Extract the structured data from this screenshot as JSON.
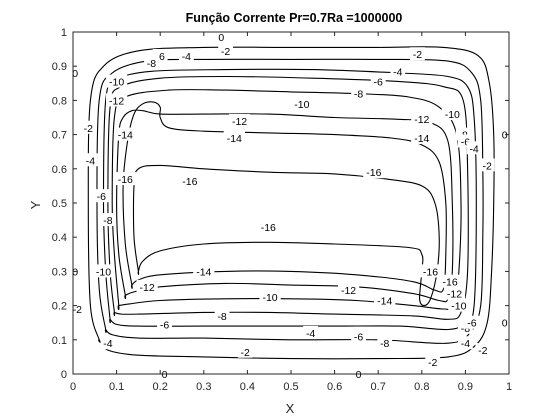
{
  "chart_data": {
    "type": "contour",
    "title": "Função Corrente Pr=0.7Ra =1000000",
    "xlabel": "X",
    "ylabel": "Y",
    "xlim": [
      0,
      1
    ],
    "ylim": [
      0,
      1
    ],
    "xticks": [
      "0",
      "0.1",
      "0.2",
      "0.3",
      "0.4",
      "0.5",
      "0.6",
      "0.7",
      "0.8",
      "0.9",
      "1"
    ],
    "yticks": [
      "0",
      "0.1",
      "0.2",
      "0.3",
      "0.4",
      "0.5",
      "0.6",
      "0.7",
      "0.8",
      "0.9",
      "1"
    ],
    "grid": false,
    "line_color": "#000000",
    "levels": [
      0,
      -2,
      -4,
      -6,
      -8,
      -10,
      -12,
      -14,
      -16
    ],
    "contours": [
      {
        "level": -2,
        "points": [
          [
            0.06,
            0.1
          ],
          [
            0.04,
            0.2
          ],
          [
            0.035,
            0.5
          ],
          [
            0.04,
            0.8
          ],
          [
            0.07,
            0.9
          ],
          [
            0.15,
            0.945
          ],
          [
            0.3,
            0.955
          ],
          [
            0.5,
            0.955
          ],
          [
            0.7,
            0.955
          ],
          [
            0.85,
            0.955
          ],
          [
            0.93,
            0.93
          ],
          [
            0.955,
            0.85
          ],
          [
            0.965,
            0.7
          ],
          [
            0.965,
            0.5
          ],
          [
            0.96,
            0.3
          ],
          [
            0.95,
            0.15
          ],
          [
            0.92,
            0.08
          ],
          [
            0.86,
            0.05
          ],
          [
            0.7,
            0.045
          ],
          [
            0.5,
            0.045
          ],
          [
            0.3,
            0.05
          ],
          [
            0.15,
            0.055
          ],
          [
            0.08,
            0.07
          ],
          [
            0.06,
            0.1
          ]
        ]
      },
      {
        "level": -4,
        "points": [
          [
            0.075,
            0.13
          ],
          [
            0.06,
            0.25
          ],
          [
            0.055,
            0.5
          ],
          [
            0.06,
            0.8
          ],
          [
            0.09,
            0.88
          ],
          [
            0.17,
            0.915
          ],
          [
            0.3,
            0.92
          ],
          [
            0.5,
            0.92
          ],
          [
            0.7,
            0.92
          ],
          [
            0.86,
            0.915
          ],
          [
            0.915,
            0.88
          ],
          [
            0.935,
            0.8
          ],
          [
            0.94,
            0.6
          ],
          [
            0.94,
            0.4
          ],
          [
            0.935,
            0.2
          ],
          [
            0.91,
            0.12
          ],
          [
            0.86,
            0.09
          ],
          [
            0.7,
            0.1
          ],
          [
            0.5,
            0.1
          ],
          [
            0.3,
            0.105
          ],
          [
            0.15,
            0.105
          ],
          [
            0.09,
            0.115
          ],
          [
            0.075,
            0.13
          ]
        ]
      },
      {
        "level": -6,
        "points": [
          [
            0.085,
            0.16
          ],
          [
            0.075,
            0.3
          ],
          [
            0.07,
            0.5
          ],
          [
            0.075,
            0.8
          ],
          [
            0.1,
            0.86
          ],
          [
            0.18,
            0.885
          ],
          [
            0.35,
            0.89
          ],
          [
            0.55,
            0.89
          ],
          [
            0.75,
            0.88
          ],
          [
            0.86,
            0.87
          ],
          [
            0.905,
            0.84
          ],
          [
            0.92,
            0.75
          ],
          [
            0.925,
            0.5
          ],
          [
            0.92,
            0.2
          ],
          [
            0.9,
            0.15
          ],
          [
            0.86,
            0.13
          ],
          [
            0.75,
            0.14
          ],
          [
            0.6,
            0.14
          ],
          [
            0.45,
            0.14
          ],
          [
            0.3,
            0.14
          ],
          [
            0.15,
            0.14
          ],
          [
            0.1,
            0.145
          ],
          [
            0.085,
            0.16
          ]
        ]
      },
      {
        "level": -8,
        "points": [
          [
            0.095,
            0.18
          ],
          [
            0.085,
            0.3
          ],
          [
            0.08,
            0.5
          ],
          [
            0.085,
            0.78
          ],
          [
            0.11,
            0.84
          ],
          [
            0.2,
            0.865
          ],
          [
            0.35,
            0.87
          ],
          [
            0.55,
            0.865
          ],
          [
            0.75,
            0.855
          ],
          [
            0.85,
            0.84
          ],
          [
            0.895,
            0.8
          ],
          [
            0.905,
            0.6
          ],
          [
            0.905,
            0.3
          ],
          [
            0.89,
            0.18
          ],
          [
            0.86,
            0.16
          ],
          [
            0.78,
            0.17
          ],
          [
            0.6,
            0.175
          ],
          [
            0.45,
            0.18
          ],
          [
            0.3,
            0.18
          ],
          [
            0.15,
            0.175
          ],
          [
            0.11,
            0.175
          ],
          [
            0.095,
            0.18
          ]
        ]
      },
      {
        "level": -10,
        "points": [
          [
            0.105,
            0.2
          ],
          [
            0.095,
            0.35
          ],
          [
            0.09,
            0.5
          ],
          [
            0.095,
            0.75
          ],
          [
            0.12,
            0.81
          ],
          [
            0.22,
            0.83
          ],
          [
            0.35,
            0.83
          ],
          [
            0.5,
            0.825
          ],
          [
            0.65,
            0.82
          ],
          [
            0.77,
            0.81
          ],
          [
            0.84,
            0.78
          ],
          [
            0.88,
            0.7
          ],
          [
            0.89,
            0.5
          ],
          [
            0.885,
            0.3
          ],
          [
            0.875,
            0.2
          ],
          [
            0.85,
            0.19
          ],
          [
            0.78,
            0.2
          ],
          [
            0.65,
            0.215
          ],
          [
            0.5,
            0.22
          ],
          [
            0.35,
            0.22
          ],
          [
            0.2,
            0.215
          ],
          [
            0.13,
            0.205
          ],
          [
            0.105,
            0.2
          ]
        ]
      },
      {
        "level": -12,
        "points": [
          [
            0.12,
            0.23
          ],
          [
            0.105,
            0.35
          ],
          [
            0.1,
            0.5
          ],
          [
            0.105,
            0.7
          ],
          [
            0.115,
            0.75
          ],
          [
            0.135,
            0.77
          ],
          [
            0.16,
            0.77
          ],
          [
            0.2,
            0.76
          ],
          [
            0.3,
            0.76
          ],
          [
            0.45,
            0.76
          ],
          [
            0.6,
            0.75
          ],
          [
            0.74,
            0.745
          ],
          [
            0.82,
            0.735
          ],
          [
            0.86,
            0.68
          ],
          [
            0.87,
            0.5
          ],
          [
            0.87,
            0.3
          ],
          [
            0.86,
            0.22
          ],
          [
            0.84,
            0.215
          ],
          [
            0.78,
            0.235
          ],
          [
            0.65,
            0.255
          ],
          [
            0.5,
            0.26
          ],
          [
            0.35,
            0.265
          ],
          [
            0.2,
            0.255
          ],
          [
            0.14,
            0.24
          ],
          [
            0.12,
            0.23
          ]
        ]
      },
      {
        "level": -14,
        "points": [
          [
            0.135,
            0.26
          ],
          [
            0.12,
            0.38
          ],
          [
            0.115,
            0.55
          ],
          [
            0.125,
            0.68
          ],
          [
            0.14,
            0.76
          ],
          [
            0.16,
            0.79
          ],
          [
            0.185,
            0.795
          ],
          [
            0.2,
            0.78
          ],
          [
            0.2,
            0.75
          ],
          [
            0.22,
            0.72
          ],
          [
            0.3,
            0.71
          ],
          [
            0.45,
            0.705
          ],
          [
            0.6,
            0.7
          ],
          [
            0.73,
            0.69
          ],
          [
            0.8,
            0.67
          ],
          [
            0.84,
            0.62
          ],
          [
            0.855,
            0.5
          ],
          [
            0.855,
            0.35
          ],
          [
            0.85,
            0.25
          ],
          [
            0.83,
            0.245
          ],
          [
            0.78,
            0.27
          ],
          [
            0.65,
            0.29
          ],
          [
            0.5,
            0.3
          ],
          [
            0.35,
            0.3
          ],
          [
            0.2,
            0.29
          ],
          [
            0.15,
            0.275
          ],
          [
            0.135,
            0.26
          ]
        ]
      },
      {
        "level": -16,
        "points": [
          [
            0.15,
            0.3
          ],
          [
            0.14,
            0.4
          ],
          [
            0.14,
            0.55
          ],
          [
            0.15,
            0.6
          ],
          [
            0.2,
            0.61
          ],
          [
            0.3,
            0.6
          ],
          [
            0.45,
            0.59
          ],
          [
            0.6,
            0.585
          ],
          [
            0.72,
            0.57
          ],
          [
            0.8,
            0.55
          ],
          [
            0.83,
            0.5
          ],
          [
            0.84,
            0.4
          ],
          [
            0.835,
            0.3
          ],
          [
            0.82,
            0.22
          ],
          [
            0.805,
            0.2
          ],
          [
            0.795,
            0.22
          ],
          [
            0.8,
            0.3
          ],
          [
            0.8,
            0.35
          ],
          [
            0.77,
            0.37
          ],
          [
            0.6,
            0.38
          ],
          [
            0.45,
            0.385
          ],
          [
            0.3,
            0.38
          ],
          [
            0.2,
            0.36
          ],
          [
            0.16,
            0.33
          ],
          [
            0.15,
            0.3
          ]
        ]
      }
    ],
    "labels": [
      {
        "text": "0",
        "x": 0.34,
        "y": 0.985
      },
      {
        "text": "-2",
        "x": 0.35,
        "y": 0.945
      },
      {
        "text": "-2",
        "x": 0.79,
        "y": 0.935
      },
      {
        "text": "-6",
        "x": 0.2,
        "y": 0.93
      },
      {
        "text": "-8",
        "x": 0.18,
        "y": 0.91
      },
      {
        "text": "-4",
        "x": 0.26,
        "y": 0.93
      },
      {
        "text": "-4",
        "x": 0.745,
        "y": 0.885
      },
      {
        "text": "0",
        "x": 0.005,
        "y": 0.88
      },
      {
        "text": "-6",
        "x": 0.7,
        "y": 0.855
      },
      {
        "text": "-10",
        "x": 0.1,
        "y": 0.855
      },
      {
        "text": "-8",
        "x": 0.655,
        "y": 0.82
      },
      {
        "text": "-12",
        "x": 0.1,
        "y": 0.8
      },
      {
        "text": "-10",
        "x": 0.525,
        "y": 0.79
      },
      {
        "text": "-2",
        "x": 0.035,
        "y": 0.72
      },
      {
        "text": "-12",
        "x": 0.382,
        "y": 0.74
      },
      {
        "text": "-12",
        "x": 0.8,
        "y": 0.745
      },
      {
        "text": "-10",
        "x": 0.87,
        "y": 0.76
      },
      {
        "text": "-14",
        "x": 0.12,
        "y": 0.7
      },
      {
        "text": "-14",
        "x": 0.37,
        "y": 0.69
      },
      {
        "text": "-14",
        "x": 0.8,
        "y": 0.69
      },
      {
        "text": "-8",
        "x": 0.895,
        "y": 0.7
      },
      {
        "text": "-6",
        "x": 0.9,
        "y": 0.68
      },
      {
        "text": "-4",
        "x": 0.92,
        "y": 0.66
      },
      {
        "text": "0",
        "x": 0.99,
        "y": 0.7
      },
      {
        "text": "-2",
        "x": 0.95,
        "y": 0.61
      },
      {
        "text": "-4",
        "x": 0.04,
        "y": 0.625
      },
      {
        "text": "-16",
        "x": 0.12,
        "y": 0.57
      },
      {
        "text": "-16",
        "x": 0.268,
        "y": 0.565
      },
      {
        "text": "-16",
        "x": 0.69,
        "y": 0.59
      },
      {
        "text": "-6",
        "x": 0.065,
        "y": 0.52
      },
      {
        "text": "-8",
        "x": 0.08,
        "y": 0.45
      },
      {
        "text": "-16",
        "x": 0.448,
        "y": 0.43
      },
      {
        "text": "0",
        "x": 0.005,
        "y": 0.3
      },
      {
        "text": "-10",
        "x": 0.07,
        "y": 0.3
      },
      {
        "text": "-14",
        "x": 0.3,
        "y": 0.3
      },
      {
        "text": "-16",
        "x": 0.82,
        "y": 0.3
      },
      {
        "text": "-16",
        "x": 0.865,
        "y": 0.27
      },
      {
        "text": "-12",
        "x": 0.17,
        "y": 0.255
      },
      {
        "text": "-12",
        "x": 0.632,
        "y": 0.245
      },
      {
        "text": "-14",
        "x": 0.715,
        "y": 0.215
      },
      {
        "text": "-10",
        "x": 0.452,
        "y": 0.225
      },
      {
        "text": "-12",
        "x": 0.875,
        "y": 0.235
      },
      {
        "text": "-10",
        "x": 0.885,
        "y": 0.2
      },
      {
        "text": "-2",
        "x": 0.01,
        "y": 0.19
      },
      {
        "text": "-8",
        "x": 0.342,
        "y": 0.17
      },
      {
        "text": "-6",
        "x": 0.21,
        "y": 0.145
      },
      {
        "text": "-4",
        "x": 0.545,
        "y": 0.12
      },
      {
        "text": "-6",
        "x": 0.655,
        "y": 0.11
      },
      {
        "text": "-8",
        "x": 0.715,
        "y": 0.09
      },
      {
        "text": "-8",
        "x": 0.9,
        "y": 0.135
      },
      {
        "text": "-6",
        "x": 0.915,
        "y": 0.15
      },
      {
        "text": "-4",
        "x": 0.9,
        "y": 0.09
      },
      {
        "text": "-2",
        "x": 0.94,
        "y": 0.07
      },
      {
        "text": "0",
        "x": 0.99,
        "y": 0.15
      },
      {
        "text": "-4",
        "x": 0.08,
        "y": 0.09
      },
      {
        "text": "-2",
        "x": 0.395,
        "y": 0.065
      },
      {
        "text": "-2",
        "x": 0.825,
        "y": 0.035
      },
      {
        "text": "0",
        "x": 0.21,
        "y": 0.0
      },
      {
        "text": "0",
        "x": 0.655,
        "y": 0.0
      }
    ]
  }
}
